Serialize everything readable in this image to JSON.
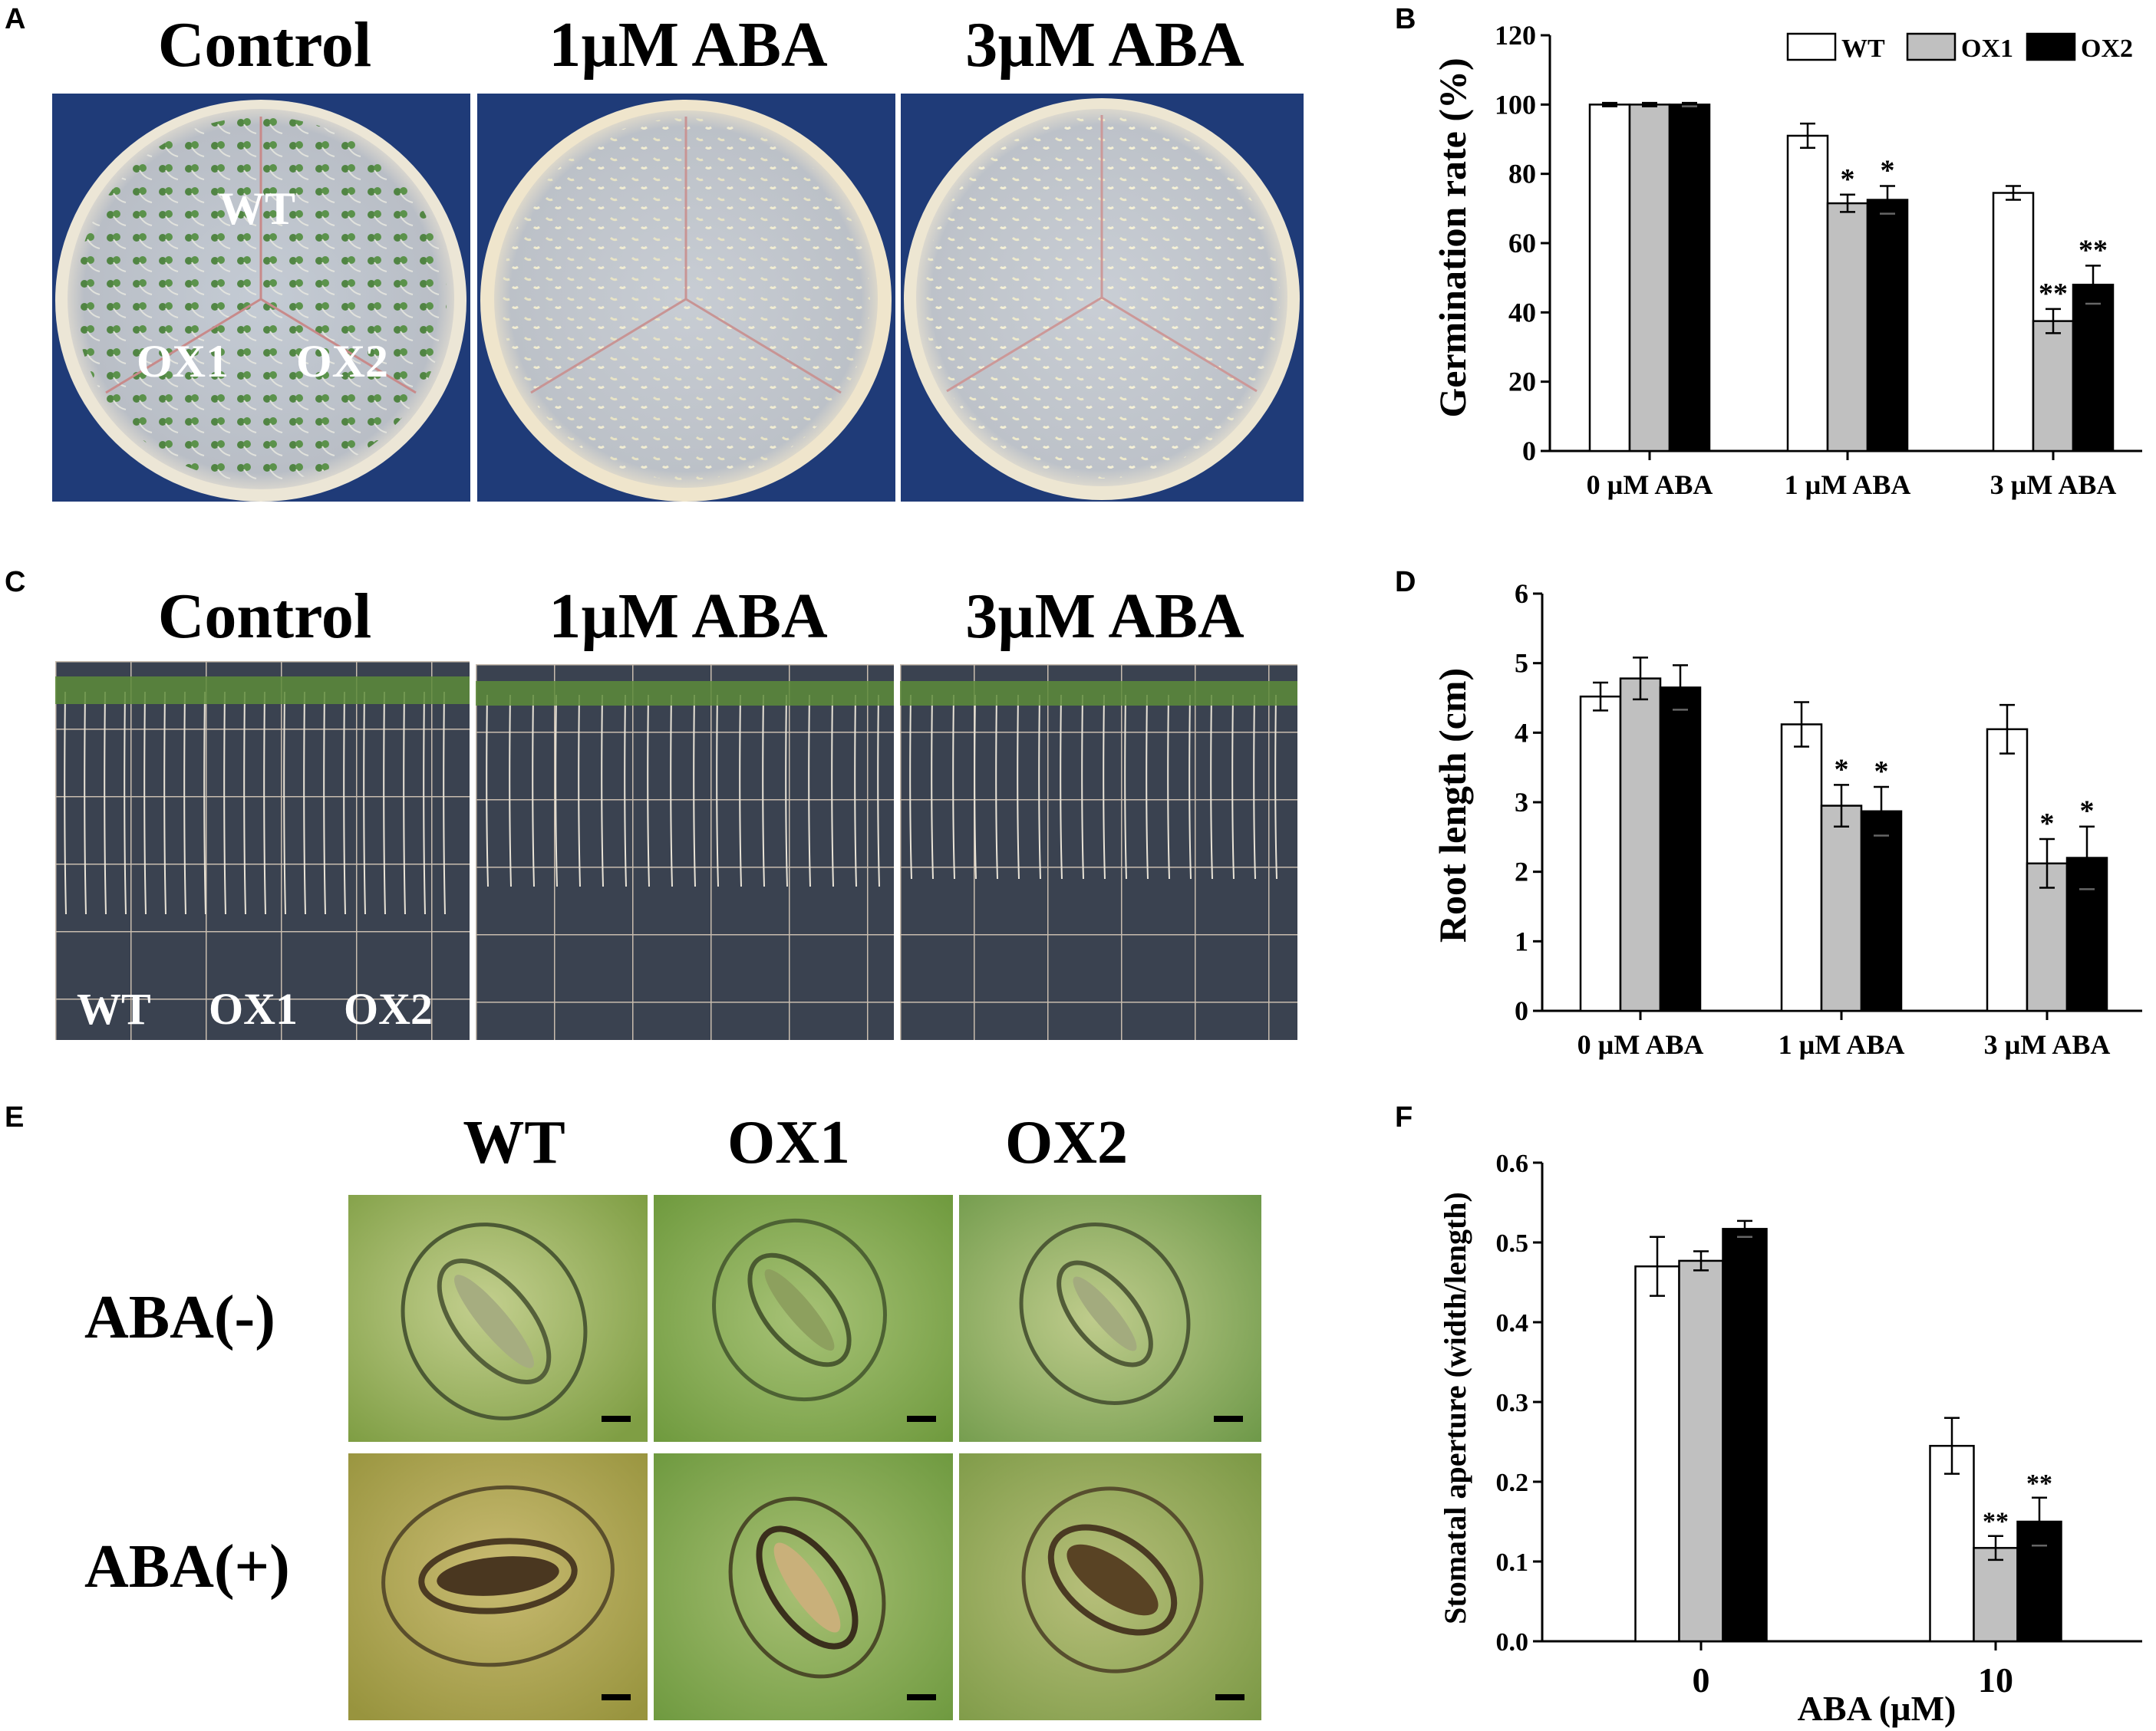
{
  "panels": {
    "A": {
      "label": "A",
      "titles": [
        "Control",
        "1µM ABA",
        "3µM ABA"
      ],
      "overlay": [
        "WT",
        "OX1",
        "OX2"
      ]
    },
    "C": {
      "label": "C",
      "titles": [
        "Control",
        "1µM ABA",
        "3µM ABA"
      ],
      "overlay": [
        "WT",
        "OX1",
        "OX2"
      ]
    },
    "E": {
      "label": "E",
      "col_titles": [
        "WT",
        "OX1",
        "OX2"
      ],
      "row_titles": [
        "ABA(-)",
        "ABA(+)"
      ]
    },
    "B": {
      "label": "B"
    },
    "D": {
      "label": "D"
    },
    "F": {
      "label": "F"
    }
  },
  "colors": {
    "WT": "#ffffff",
    "OX1": "#c0c0c0",
    "OX2": "#000000"
  },
  "chart_data": [
    {
      "panel": "B",
      "type": "bar",
      "categories": [
        "0 µM ABA",
        "1 µM ABA",
        "3 µM ABA"
      ],
      "series": [
        {
          "name": "WT",
          "values": [
            100,
            91,
            74.5
          ],
          "errors": [
            0.5,
            3.5,
            2
          ],
          "marks": [
            "",
            "",
            ""
          ]
        },
        {
          "name": "OX1",
          "values": [
            100,
            71.5,
            37.5
          ],
          "errors": [
            0.5,
            2.5,
            3.5
          ],
          "marks": [
            "",
            "*",
            "**"
          ]
        },
        {
          "name": "OX2",
          "values": [
            100,
            72.5,
            48
          ],
          "errors": [
            0.5,
            4,
            5.5
          ],
          "marks": [
            "",
            "*",
            "**"
          ]
        }
      ],
      "ylabel": "Germination rate (%)",
      "xlabel": "",
      "ylim": [
        0,
        120
      ],
      "yticks": [
        0,
        20,
        40,
        60,
        80,
        100,
        120
      ],
      "legend": "top-right",
      "grid": false
    },
    {
      "panel": "D",
      "type": "bar",
      "categories": [
        "0 µM ABA",
        "1 µM ABA",
        "3 µM ABA"
      ],
      "series": [
        {
          "name": "WT",
          "values": [
            4.52,
            4.12,
            4.05
          ],
          "errors": [
            0.2,
            0.32,
            0.35
          ],
          "marks": [
            "",
            "",
            ""
          ]
        },
        {
          "name": "OX1",
          "values": [
            4.78,
            2.95,
            2.12
          ],
          "errors": [
            0.3,
            0.3,
            0.35
          ],
          "marks": [
            "",
            "*",
            "*"
          ]
        },
        {
          "name": "OX2",
          "values": [
            4.65,
            2.87,
            2.2
          ],
          "errors": [
            0.32,
            0.35,
            0.45
          ],
          "marks": [
            "",
            "*",
            "*"
          ]
        }
      ],
      "ylabel": "Root length (cm)",
      "xlabel": "",
      "ylim": [
        0,
        6
      ],
      "yticks": [
        0,
        1,
        2,
        3,
        4,
        5,
        6
      ],
      "grid": false
    },
    {
      "panel": "F",
      "type": "bar",
      "categories": [
        "0",
        "10"
      ],
      "series": [
        {
          "name": "WT",
          "values": [
            0.47,
            0.245
          ],
          "errors": [
            0.037,
            0.035
          ],
          "marks": [
            "",
            ""
          ]
        },
        {
          "name": "OX1",
          "values": [
            0.477,
            0.117
          ],
          "errors": [
            0.012,
            0.015
          ],
          "marks": [
            "",
            "**"
          ]
        },
        {
          "name": "OX2",
          "values": [
            0.517,
            0.15
          ],
          "errors": [
            0.01,
            0.03
          ],
          "marks": [
            "",
            "**"
          ]
        }
      ],
      "ylabel": "Stomatal aperture (width/length)",
      "xlabel": "ABA (µM)",
      "ylim": [
        0,
        0.6
      ],
      "yticks": [
        "0.0",
        "0.1",
        "0.2",
        "0.3",
        "0.4",
        "0.5",
        "0.6"
      ],
      "grid": false
    }
  ]
}
